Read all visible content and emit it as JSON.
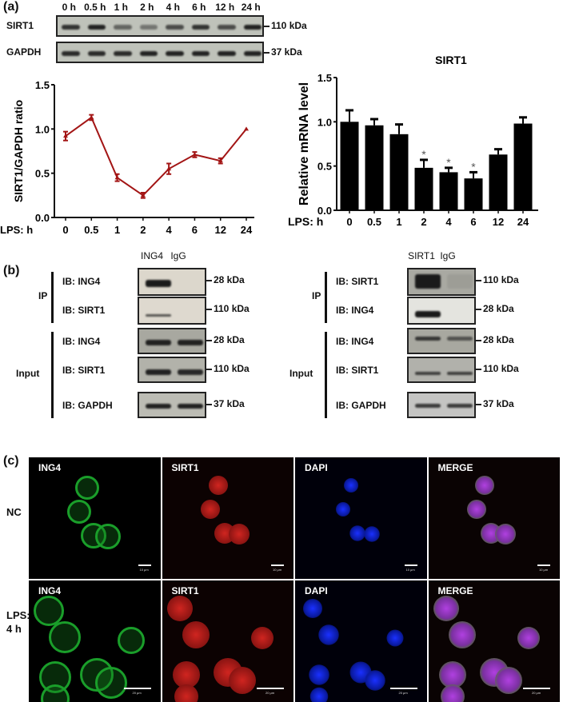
{
  "panel_a": {
    "label": "(a)",
    "blot": {
      "lanes": [
        "0 h",
        "0.5 h",
        "1 h",
        "2 h",
        "4 h",
        "6 h",
        "12 h",
        "24 h"
      ],
      "rows": [
        {
          "label": "SIRT1",
          "kda": "110 kDa",
          "intensity": [
            0.85,
            0.95,
            0.55,
            0.45,
            0.7,
            0.85,
            0.7,
            0.95
          ]
        },
        {
          "label": "GAPDH",
          "kda": "37 kDa",
          "intensity": [
            0.9,
            0.9,
            0.9,
            0.95,
            0.95,
            0.95,
            0.95,
            0.95
          ]
        }
      ]
    }
  },
  "panel_b": {
    "label": "(b)",
    "left": {
      "lanes": [
        "ING4",
        "IgG"
      ],
      "groups": [
        {
          "label": "IP",
          "rows": [
            {
              "ib": "IB: ING4",
              "kda": "28 kDa"
            },
            {
              "ib": "IB: SIRT1",
              "kda": "110 kDa"
            }
          ]
        },
        {
          "label": "Input",
          "rows": [
            {
              "ib": "IB: ING4",
              "kda": "28 kDa"
            },
            {
              "ib": "IB: SIRT1",
              "kda": "110 kDa"
            },
            {
              "ib": "IB: GAPDH",
              "kda": "37 kDa"
            }
          ]
        }
      ]
    },
    "right": {
      "lanes": [
        "SIRT1",
        "IgG"
      ],
      "groups": [
        {
          "label": "IP",
          "rows": [
            {
              "ib": "IB: SIRT1",
              "kda": "110 kDa"
            },
            {
              "ib": "IB: ING4",
              "kda": "28 kDa"
            }
          ]
        },
        {
          "label": "Input",
          "rows": [
            {
              "ib": "IB: ING4",
              "kda": "28 kDa"
            },
            {
              "ib": "IB: SIRT1",
              "kda": "110 kDa"
            },
            {
              "ib": "IB: GAPDH",
              "kda": "37 kDa"
            }
          ]
        }
      ]
    }
  },
  "panel_c": {
    "label": "(c)",
    "columns": [
      "ING4",
      "SIRT1",
      "DAPI",
      "MERGE"
    ],
    "rows": [
      {
        "label": "NC",
        "scale": "10 μm"
      },
      {
        "label": "LPS:\n4 h",
        "label_line1": "LPS:",
        "label_line2": "4 h",
        "scale": "20 μm"
      }
    ]
  },
  "chart_data": [
    {
      "type": "line",
      "title": "",
      "xlabel": "LPS: h",
      "ylabel": "SIRT1/GAPDH  ratio",
      "categories": [
        "0",
        "0.5",
        "1",
        "2",
        "4",
        "6",
        "12",
        "24"
      ],
      "values": [
        0.92,
        1.13,
        0.45,
        0.25,
        0.55,
        0.71,
        0.64,
        1.0
      ],
      "errors": [
        0.05,
        0.03,
        0.04,
        0.03,
        0.06,
        0.03,
        0.03,
        0.0
      ],
      "ylim": [
        0,
        1.5
      ],
      "yticks": [
        "0.0",
        "0.5",
        "1.0",
        "1.5"
      ],
      "color": "#a31515",
      "grid": false
    },
    {
      "type": "bar",
      "title": "SIRT1",
      "xlabel": "LPS: h",
      "ylabel": "Relative mRNA level",
      "categories": [
        "0",
        "0.5",
        "1",
        "2",
        "4",
        "6",
        "12",
        "24"
      ],
      "values": [
        1.0,
        0.96,
        0.86,
        0.48,
        0.43,
        0.36,
        0.63,
        0.98
      ],
      "errors": [
        0.13,
        0.07,
        0.11,
        0.09,
        0.05,
        0.07,
        0.06,
        0.07
      ],
      "significance": [
        "",
        "",
        "",
        "*",
        "*",
        "*",
        "",
        ""
      ],
      "ylim": [
        0,
        1.5
      ],
      "yticks": [
        "0.0",
        "0.5",
        "1.0",
        "1.5"
      ],
      "color": "#000000",
      "grid": false
    }
  ]
}
